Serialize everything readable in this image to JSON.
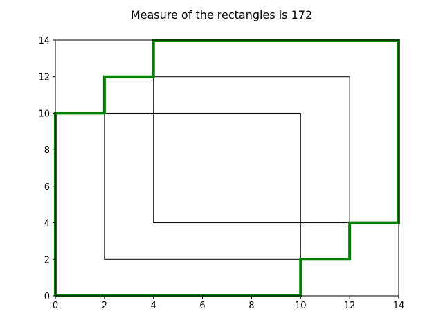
{
  "chart_data": {
    "type": "line",
    "title": "Measure of the rectangles is 172",
    "xlabel": "",
    "ylabel": "",
    "xlim": [
      0,
      14
    ],
    "ylim": [
      0,
      14
    ],
    "xticks": [
      0,
      2,
      4,
      6,
      8,
      10,
      12,
      14
    ],
    "yticks": [
      0,
      2,
      4,
      6,
      8,
      10,
      12,
      14
    ],
    "grid": false,
    "rectangles": [
      {
        "x1": 0,
        "y1": 0,
        "x2": 10,
        "y2": 10
      },
      {
        "x1": 2,
        "y1": 2,
        "x2": 12,
        "y2": 12
      },
      {
        "x1": 4,
        "y1": 4,
        "x2": 14,
        "y2": 14
      }
    ],
    "rectangle_color": "#000000",
    "union_outline": {
      "color": "#008000",
      "points": [
        [
          0,
          0
        ],
        [
          10,
          0
        ],
        [
          10,
          2
        ],
        [
          12,
          2
        ],
        [
          12,
          4
        ],
        [
          14,
          4
        ],
        [
          14,
          14
        ],
        [
          4,
          14
        ],
        [
          4,
          12
        ],
        [
          2,
          12
        ],
        [
          2,
          10
        ],
        [
          0,
          10
        ],
        [
          0,
          0
        ]
      ]
    }
  }
}
